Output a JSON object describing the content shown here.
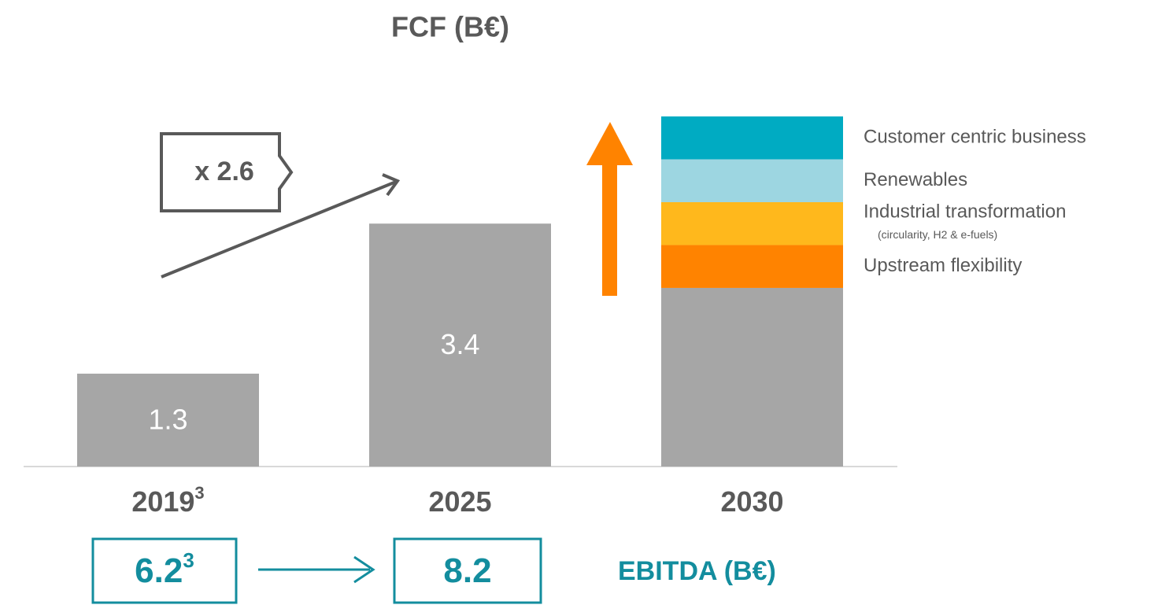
{
  "chart_data": {
    "type": "stacked_bar",
    "title": "FCF (B€)",
    "categories": [
      "2019",
      "2025",
      "2030"
    ],
    "category_footnotes": [
      "3",
      null,
      null
    ],
    "series": [
      {
        "name": null,
        "color": "#a6a6a6",
        "values": [
          1.3,
          3.4,
          2.5
        ],
        "value_labels": [
          "1.3",
          "3.4",
          null
        ]
      },
      {
        "name": "Upstream flexibility",
        "color": "#ff8300",
        "values": [
          null,
          null,
          0.6
        ]
      },
      {
        "name": "Industrial transformation",
        "note": "(circularity, H2 & e-fuels)",
        "color": "#ffb81c",
        "values": [
          null,
          null,
          0.6
        ]
      },
      {
        "name": "Renewables",
        "color": "#9dd6e1",
        "values": [
          null,
          null,
          0.6
        ]
      },
      {
        "name": "Customer centric business",
        "color": "#00abc2",
        "values": [
          null,
          null,
          0.6
        ]
      }
    ],
    "growth_label": "x 2.6",
    "ebitda": {
      "label": "EBITDA (B€)",
      "values": [
        6.2,
        8.2
      ],
      "footnotes": [
        "3",
        null
      ],
      "color": "#138d9e"
    }
  }
}
